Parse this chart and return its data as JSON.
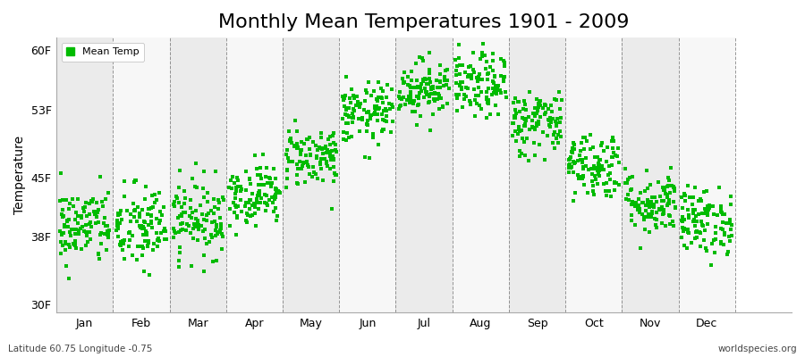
{
  "title": "Monthly Mean Temperatures 1901 - 2009",
  "ylabel": "Temperature",
  "xlabel_months": [
    "Jan",
    "Feb",
    "Mar",
    "Apr",
    "May",
    "Jun",
    "Jul",
    "Aug",
    "Sep",
    "Oct",
    "Nov",
    "Dec"
  ],
  "yticks": [
    30,
    38,
    45,
    53,
    60
  ],
  "ytick_labels": [
    "30F",
    "38F",
    "45F",
    "53F",
    "60F"
  ],
  "ylim": [
    29.0,
    61.5
  ],
  "xlim": [
    -0.5,
    12.5
  ],
  "dot_color": "#00BB00",
  "dot_size": 6,
  "legend_label": "Mean Temp",
  "footnote_left": "Latitude 60.75 Longitude -0.75",
  "footnote_right": "worldspecies.org",
  "background_color": "#FFFFFF",
  "plot_bg_color": "#FFFFFF",
  "band_color_odd": "#EBEBEB",
  "band_color_even": "#F7F7F7",
  "grid_color": "#555555",
  "title_fontsize": 16,
  "label_fontsize": 10,
  "tick_fontsize": 9,
  "monthly_means_F": [
    39.2,
    39.0,
    40.2,
    43.0,
    47.5,
    52.5,
    55.5,
    55.8,
    51.5,
    46.5,
    42.0,
    39.8
  ],
  "monthly_stds_F": [
    2.3,
    2.6,
    2.3,
    1.8,
    1.8,
    1.8,
    1.7,
    1.9,
    2.0,
    2.0,
    1.9,
    2.0
  ],
  "n_years": 109,
  "seed": 42
}
